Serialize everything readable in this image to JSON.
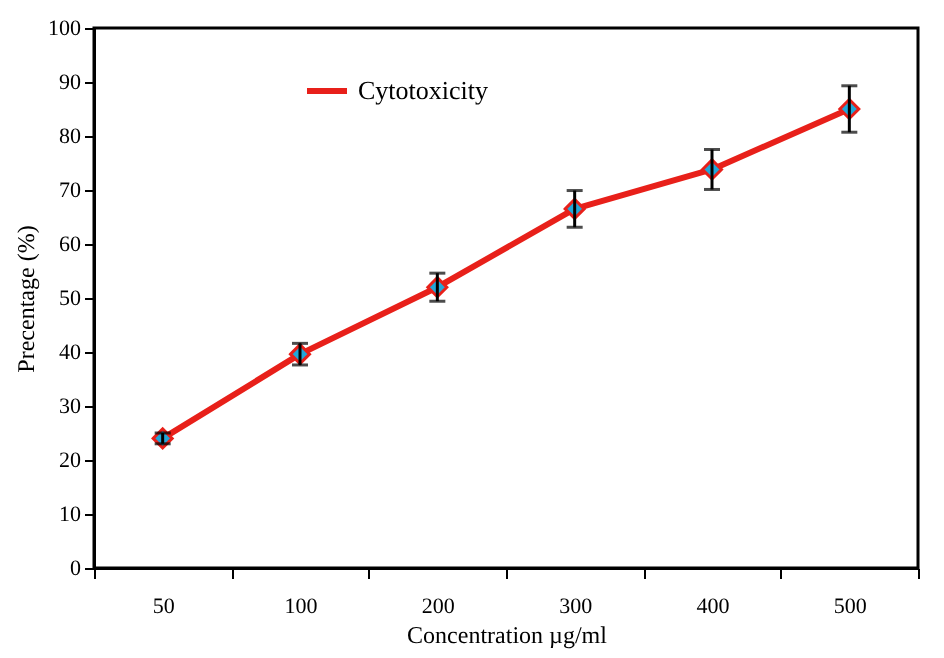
{
  "chart_data": {
    "type": "line",
    "xlabel": "Concentration µg/ml",
    "ylabel": "Precentage (%)",
    "categories": [
      "50",
      "100",
      "200",
      "300",
      "400",
      "500"
    ],
    "series": [
      {
        "name": "Cytotoxicity",
        "color": "#e8201a",
        "values": [
          24,
          39.6,
          52,
          66.5,
          73.8,
          85
        ],
        "errors": [
          1,
          2,
          2.6,
          3.4,
          3.7,
          4.3
        ]
      }
    ],
    "ylim": [
      0,
      100
    ],
    "yticks": [
      0,
      10,
      20,
      30,
      40,
      50,
      60,
      70,
      80,
      90,
      100
    ],
    "grid": false,
    "legend": "top",
    "marker": "diamond",
    "line_style": "solid"
  }
}
